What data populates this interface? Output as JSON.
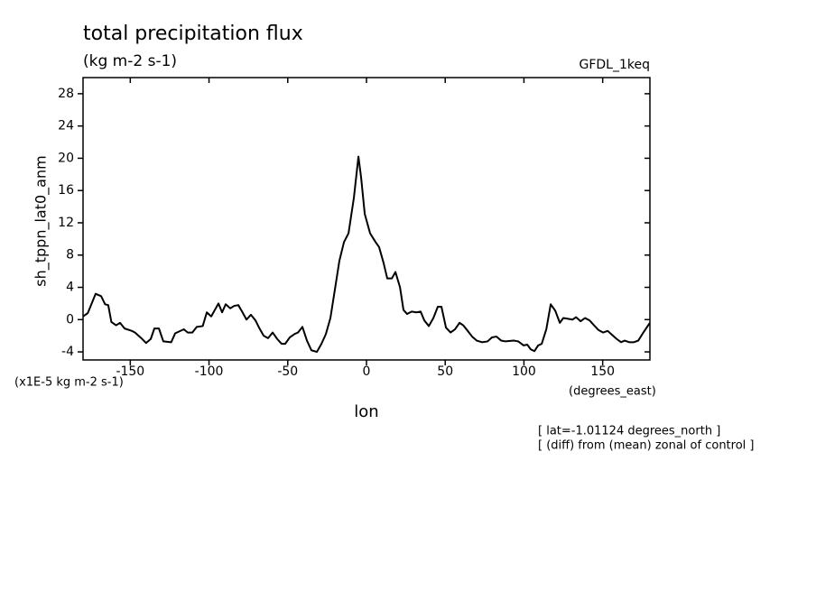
{
  "chart_data": {
    "type": "line",
    "title": "total precipitation flux",
    "subtitle": "(kg m-2 s-1)",
    "dataset_label": "GFDL_1keq",
    "y_label": "sh_tppn_lat0_anm",
    "y_units": "(x1E-5 kg m-2 s-1)",
    "x_label": "lon",
    "x_units": "(degrees_east)",
    "annotations": [
      "[ lat=-1.01124 degrees_north ]",
      "[ (diff) from (mean) zonal of control ]"
    ],
    "color": "#000000",
    "x": [
      -180,
      -177,
      -172,
      -168.5,
      -166,
      -164,
      -162,
      -159,
      -156.5,
      -153.6,
      -149,
      -147,
      -143,
      -140,
      -137,
      -134.7,
      -131.8,
      -129,
      -124,
      -121.5,
      -116,
      -113.5,
      -110.6,
      -107.8,
      -104,
      -101.4,
      -98.6,
      -96,
      -94,
      -91.7,
      -89.4,
      -86.5,
      -84,
      -81.4,
      -79,
      -76.2,
      -73.4,
      -70.5,
      -68.2,
      -65.3,
      -62.5,
      -59.6,
      -56.7,
      -53.9,
      -51.6,
      -48.7,
      -45.8,
      -43.5,
      -40.7,
      -37.8,
      -35,
      -31.5,
      -28.6,
      -25.8,
      -22.9,
      -20,
      -17.2,
      -14.3,
      -11.4,
      -8,
      -5.1,
      -3.4,
      -1.1,
      2.3,
      5.8,
      8,
      10.9,
      13.2,
      16.1,
      18.4,
      21.3,
      23.5,
      25.8,
      28.7,
      31.6,
      34.4,
      36.7,
      39.6,
      42.5,
      45.3,
      47.6,
      50.5,
      53.4,
      56.2,
      59.1,
      61.4,
      64.3,
      67.1,
      70,
      73.4,
      76.9,
      79.7,
      82.6,
      85.5,
      88.3,
      93.5,
      96.4,
      99.8,
      102.1,
      104.4,
      106.7,
      109,
      111.3,
      114.2,
      117,
      119.9,
      122.8,
      125,
      128,
      130.8,
      133.1,
      136,
      138.8,
      141.7,
      144.5,
      147.4,
      150.3,
      153.2,
      156,
      158.9,
      161.7,
      164,
      166.9,
      169.8,
      172.6,
      175.5,
      180
    ],
    "values": [
      0.4,
      0.8,
      3.2,
      2.9,
      1.9,
      1.8,
      -0.3,
      -0.7,
      -0.4,
      -1.1,
      -1.4,
      -1.6,
      -2.3,
      -2.9,
      -2.4,
      -1.1,
      -1.1,
      -2.7,
      -2.8,
      -1.7,
      -1.2,
      -1.6,
      -1.6,
      -0.9,
      -0.8,
      0.9,
      0.4,
      1.3,
      2.0,
      0.9,
      1.9,
      1.4,
      1.7,
      1.8,
      1.0,
      0,
      0.6,
      -0.1,
      -1.0,
      -2.0,
      -2.3,
      -1.6,
      -2.4,
      -3.0,
      -3.0,
      -2.2,
      -1.8,
      -1.6,
      -0.9,
      -2.6,
      -3.8,
      -4.0,
      -3.0,
      -1.8,
      0.2,
      3.8,
      7.3,
      9.6,
      10.7,
      15.1,
      20.2,
      17.6,
      13.1,
      10.7,
      9.6,
      9.0,
      7.0,
      5.1,
      5.1,
      5.9,
      4.0,
      1.2,
      0.7,
      1.0,
      0.9,
      1.0,
      -0.1,
      -0.8,
      0.2,
      1.6,
      1.6,
      -1.0,
      -1.6,
      -1.2,
      -0.4,
      -0.7,
      -1.4,
      -2.1,
      -2.6,
      -2.8,
      -2.7,
      -2.2,
      -2.1,
      -2.6,
      -2.7,
      -2.6,
      -2.7,
      -3.2,
      -3.1,
      -3.7,
      -3.9,
      -3.2,
      -3.0,
      -1.2,
      1.9,
      1.1,
      -0.4,
      0.2,
      0.1,
      0,
      0.3,
      -0.2,
      0.2,
      -0.1,
      -0.7,
      -1.3,
      -1.6,
      -1.4,
      -1.9,
      -2.4,
      -2.8,
      -2.6,
      -2.8,
      -2.8,
      -2.6,
      -1.7,
      -0.4
    ],
    "xlim": [
      -180,
      180
    ],
    "ylim": [
      -5,
      30
    ],
    "xticks": [
      -150,
      -100,
      -50,
      0,
      50,
      100,
      150
    ],
    "yticks": [
      -4,
      0,
      4,
      8,
      12,
      16,
      20,
      24,
      28
    ]
  }
}
